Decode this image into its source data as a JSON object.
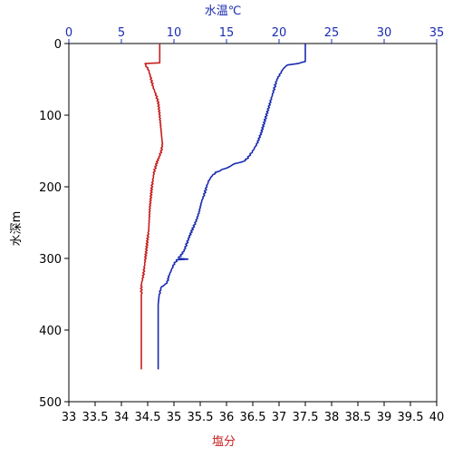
{
  "chart_data": {
    "type": "line",
    "top_axis_label": "水温℃",
    "bottom_axis_label": "塩分",
    "left_axis_label": "水深m",
    "axes": {
      "temperature": {
        "range": [
          0,
          35
        ],
        "ticks": [
          "0",
          "5",
          "10",
          "15",
          "20",
          "25",
          "30",
          "35"
        ],
        "color": "#1a2bb0"
      },
      "salinity": {
        "range": [
          33,
          40
        ],
        "ticks": [
          "33",
          "33.5",
          "34",
          "34.5",
          "35",
          "35.5",
          "36",
          "36.5",
          "37",
          "37.5",
          "38",
          "38.5",
          "39",
          "39.5",
          "40"
        ],
        "color": "#c81e1e"
      },
      "depth": {
        "range": [
          0,
          500
        ],
        "inverted": true,
        "ticks": [
          "0",
          "100",
          "200",
          "300",
          "400",
          "500"
        ]
      }
    },
    "grid": false,
    "series": [
      {
        "axis": "temperature",
        "color": "#1a2bb0",
        "points": [
          [
            22.5,
            0
          ],
          [
            22.5,
            25
          ],
          [
            21.8,
            28
          ],
          [
            20.8,
            30
          ],
          [
            20.4,
            35
          ],
          [
            20.0,
            45
          ],
          [
            19.8,
            50
          ],
          [
            19.6,
            60
          ],
          [
            19.4,
            70
          ],
          [
            19.2,
            80
          ],
          [
            18.9,
            95
          ],
          [
            18.6,
            110
          ],
          [
            18.3,
            125
          ],
          [
            17.9,
            140
          ],
          [
            17.5,
            150
          ],
          [
            17.0,
            160
          ],
          [
            16.6,
            165
          ],
          [
            15.7,
            168
          ],
          [
            15.3,
            172
          ],
          [
            14.6,
            176
          ],
          [
            14.0,
            180
          ],
          [
            13.6,
            185
          ],
          [
            13.3,
            192
          ],
          [
            13.1,
            200
          ],
          [
            12.9,
            210
          ],
          [
            12.6,
            222
          ],
          [
            12.4,
            235
          ],
          [
            12.1,
            248
          ],
          [
            11.8,
            258
          ],
          [
            11.6,
            265
          ],
          [
            11.4,
            272
          ],
          [
            11.2,
            280
          ],
          [
            11.0,
            288
          ],
          [
            10.7,
            295
          ],
          [
            10.4,
            300
          ],
          [
            11.3,
            301
          ],
          [
            10.3,
            302
          ],
          [
            10.0,
            308
          ],
          [
            9.7,
            318
          ],
          [
            9.5,
            325
          ],
          [
            9.4,
            332
          ],
          [
            9.2,
            336
          ],
          [
            8.8,
            340
          ],
          [
            8.6,
            350
          ],
          [
            8.5,
            365
          ],
          [
            8.5,
            400
          ],
          [
            8.5,
            455
          ]
        ]
      },
      {
        "axis": "salinity",
        "color": "#c81e1e",
        "points": [
          [
            34.73,
            0
          ],
          [
            34.73,
            27
          ],
          [
            34.45,
            28
          ],
          [
            34.48,
            32
          ],
          [
            34.52,
            38
          ],
          [
            34.56,
            48
          ],
          [
            34.6,
            60
          ],
          [
            34.66,
            72
          ],
          [
            34.7,
            82
          ],
          [
            34.72,
            95
          ],
          [
            34.74,
            110
          ],
          [
            34.76,
            125
          ],
          [
            34.78,
            140
          ],
          [
            34.76,
            150
          ],
          [
            34.72,
            158
          ],
          [
            34.68,
            165
          ],
          [
            34.65,
            172
          ],
          [
            34.62,
            180
          ],
          [
            34.6,
            190
          ],
          [
            34.58,
            200
          ],
          [
            34.56,
            215
          ],
          [
            34.54,
            230
          ],
          [
            34.53,
            245
          ],
          [
            34.52,
            260
          ],
          [
            34.5,
            272
          ],
          [
            34.48,
            285
          ],
          [
            34.46,
            298
          ],
          [
            34.44,
            310
          ],
          [
            34.42,
            322
          ],
          [
            34.4,
            330
          ],
          [
            34.38,
            336
          ],
          [
            34.38,
            350
          ],
          [
            34.38,
            380
          ],
          [
            34.38,
            420
          ],
          [
            34.38,
            455
          ]
        ]
      }
    ]
  }
}
